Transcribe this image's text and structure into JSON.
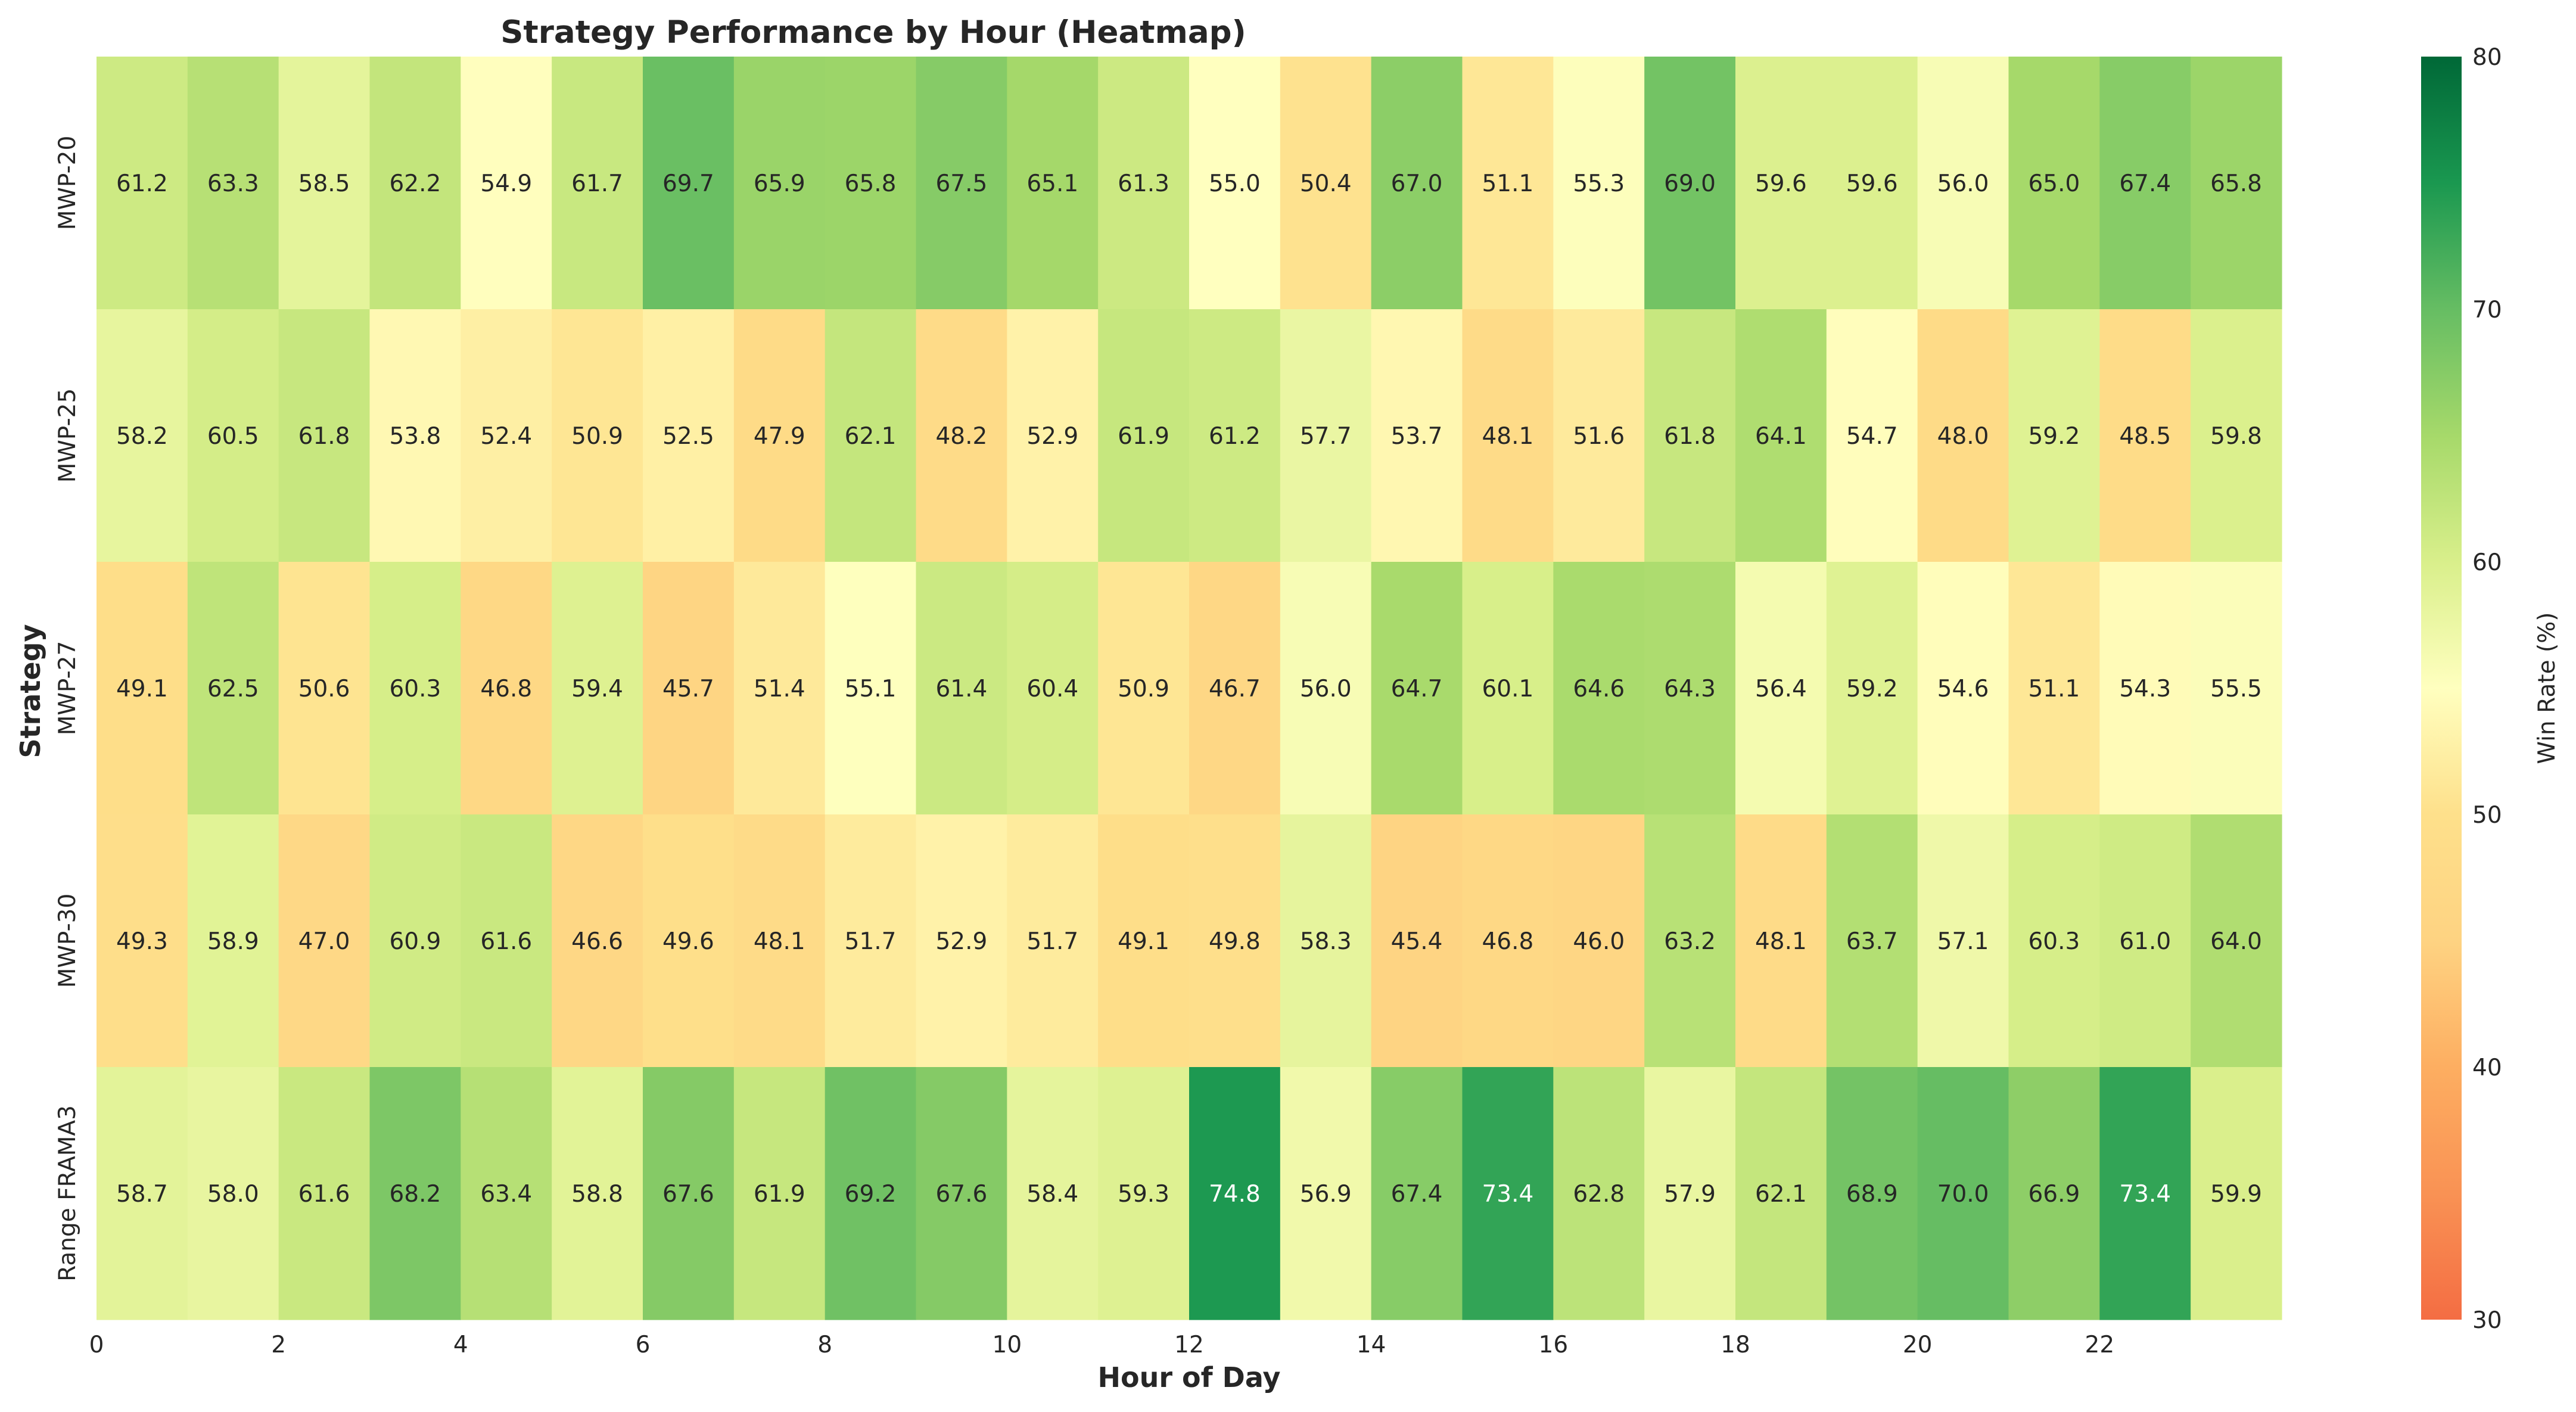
{
  "chart_data": {
    "type": "heatmap",
    "title": "Strategy Performance by Hour (Heatmap)",
    "xlabel": "Hour of Day",
    "ylabel": "Strategy",
    "colorbar_label": "Win Rate (%)",
    "colormap": "RdYlGn",
    "vmin": 30,
    "vmax": 80,
    "colorbar_ticks": [
      "30",
      "40",
      "50",
      "60",
      "70",
      "80"
    ],
    "x_ticks": [
      "0",
      "2",
      "4",
      "6",
      "8",
      "10",
      "12",
      "14",
      "16",
      "18",
      "20",
      "22"
    ],
    "hours": [
      0,
      1,
      2,
      3,
      4,
      5,
      6,
      7,
      8,
      9,
      10,
      11,
      12,
      13,
      14,
      15,
      16,
      17,
      18,
      19,
      20,
      21,
      22,
      23
    ],
    "rows": [
      "MWP-20",
      "MWP-25",
      "MWP-27",
      "MWP-30",
      "Range FRAMA3"
    ],
    "values": [
      [
        61.2,
        63.3,
        58.5,
        62.2,
        54.9,
        61.7,
        69.7,
        65.9,
        65.8,
        67.5,
        65.1,
        61.3,
        55.0,
        50.4,
        67.0,
        51.1,
        55.3,
        69.0,
        59.6,
        59.6,
        56.0,
        65.0,
        67.4,
        65.8
      ],
      [
        58.2,
        60.5,
        61.8,
        53.8,
        52.4,
        50.9,
        52.5,
        47.9,
        62.1,
        48.2,
        52.9,
        61.9,
        61.2,
        57.7,
        53.7,
        48.1,
        51.6,
        61.8,
        64.1,
        54.7,
        48.0,
        59.2,
        48.5,
        59.8
      ],
      [
        49.1,
        62.5,
        50.6,
        60.3,
        46.8,
        59.4,
        45.7,
        51.4,
        55.1,
        61.4,
        60.4,
        50.9,
        46.7,
        56.0,
        64.7,
        60.1,
        64.6,
        64.3,
        56.4,
        59.2,
        54.6,
        51.1,
        54.3,
        55.5
      ],
      [
        49.3,
        58.9,
        47.0,
        60.9,
        61.6,
        46.6,
        49.6,
        48.1,
        51.7,
        52.9,
        51.7,
        49.1,
        49.8,
        58.3,
        45.4,
        46.8,
        46.0,
        63.2,
        48.1,
        63.7,
        57.1,
        60.3,
        61.0,
        64.0
      ],
      [
        58.7,
        58.0,
        61.6,
        68.2,
        63.4,
        58.8,
        67.6,
        61.9,
        69.2,
        67.6,
        58.4,
        59.3,
        74.8,
        56.9,
        67.4,
        73.4,
        62.8,
        57.9,
        62.1,
        68.9,
        70.0,
        66.9,
        73.4,
        59.9
      ]
    ]
  }
}
